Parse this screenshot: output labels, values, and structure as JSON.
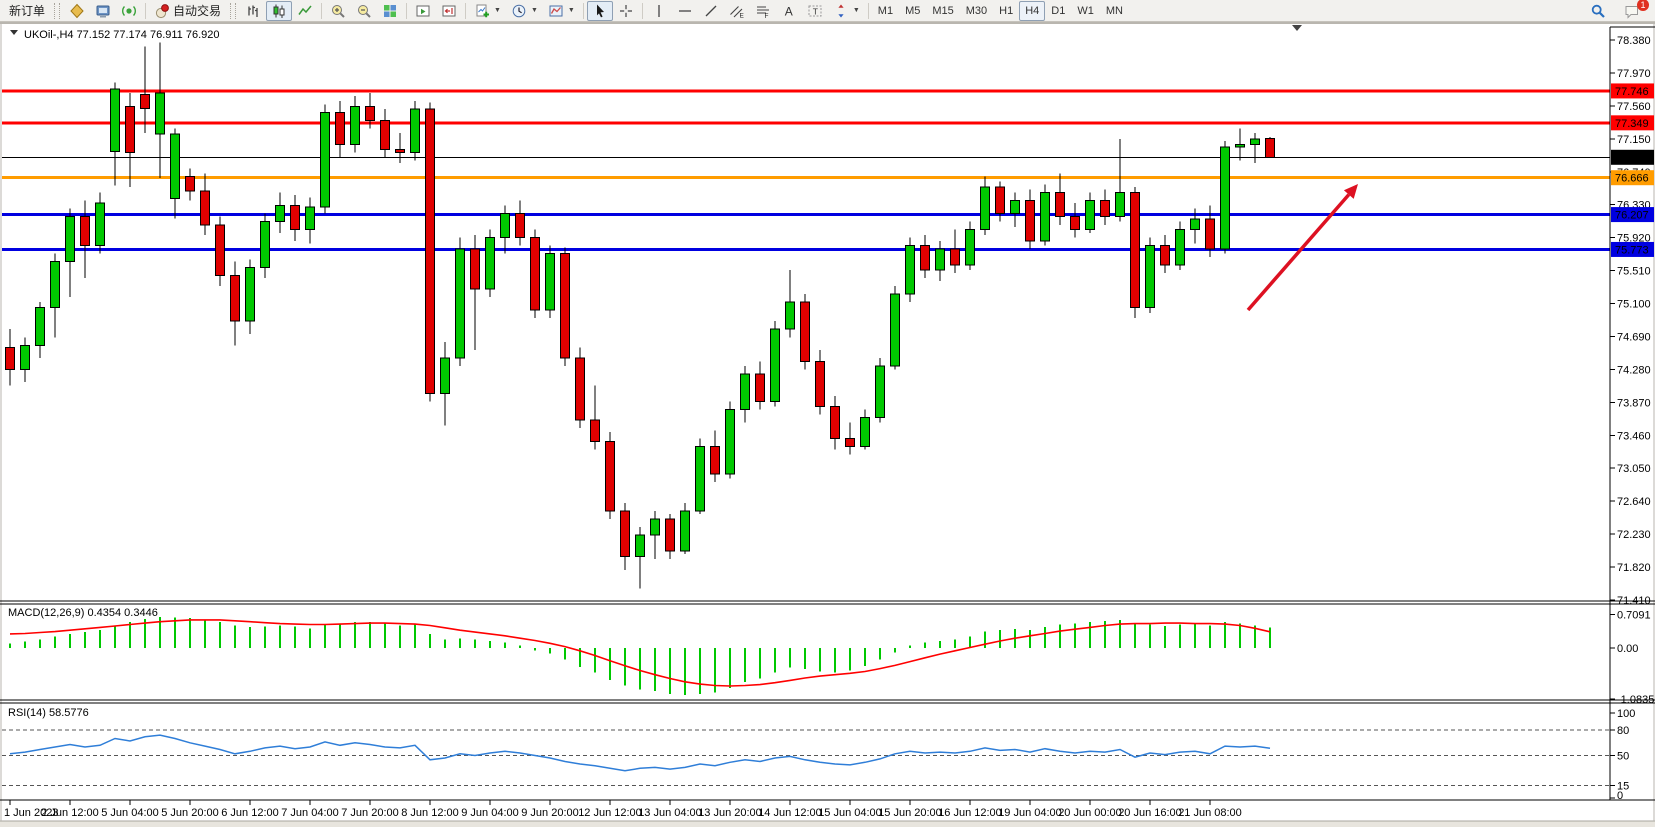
{
  "toolbar": {
    "buttons": {
      "new_order": "新订单",
      "autotrading": "自动交易"
    },
    "icon_groups": [
      [
        "market-watch-icon",
        "terminal-icon",
        "signals-icon"
      ],
      [
        "bar-chart-icon",
        "candlestick-chart-icon",
        "line-chart-icon"
      ],
      [
        "zoom-in-icon",
        "zoom-out-icon",
        "tile-windows-icon"
      ],
      [
        "auto-scroll-icon",
        "chart-shift-icon"
      ],
      [
        "add-indicator-icon",
        "periods-icon",
        "templates-icon"
      ],
      [
        "cursor-icon",
        "crosshair-icon"
      ],
      [
        "vertical-line-icon",
        "horizontal-line-icon",
        "trendline-icon",
        "equidistant-channel-icon",
        "fibonacci-icon",
        "text-icon",
        "text-label-icon",
        "arrows-icon"
      ]
    ],
    "active_icons": [
      "candlestick-chart-icon",
      "cursor-icon"
    ],
    "caret_icons": [
      "add-indicator-icon",
      "periods-icon",
      "templates-icon",
      "arrows-icon"
    ],
    "timeframes": [
      "M1",
      "M5",
      "M15",
      "M30",
      "H1",
      "H4",
      "D1",
      "W1",
      "MN"
    ],
    "active_timeframe": "H4",
    "right_icons": [
      "search-icon",
      "chat-icon"
    ],
    "chat_badge": "1"
  },
  "chart_data": {
    "type": "candlestick",
    "title": {
      "symbol": "UKOil-,H4",
      "ohlc": "77.152 77.174 76.911 76.920"
    },
    "colors": {
      "up": "#00C800",
      "down": "#E00000",
      "outline": "#000000",
      "macd_hist": "#00C800",
      "macd_signal": "#FF0000",
      "rsi_line": "#2F7ED8",
      "level_red": "#FF0000",
      "level_orange": "#FF9C00",
      "level_blue": "#0000E0",
      "current_price": "#000000",
      "arrow": "#DD1122"
    },
    "price_axis": {
      "labels": [
        "78.380",
        "77.970",
        "77.560",
        "77.150",
        "76.740",
        "76.330",
        "75.920",
        "75.510",
        "75.100",
        "74.690",
        "74.280",
        "73.870",
        "73.460",
        "73.050",
        "72.640",
        "72.230",
        "71.820",
        "71.410"
      ],
      "visible_range": [
        71.41,
        78.38
      ]
    },
    "hlines": [
      {
        "price": 77.746,
        "label": "77.746",
        "color": "#FF0000",
        "width": 3,
        "current": false
      },
      {
        "price": 77.349,
        "label": "77.349",
        "color": "#FF0000",
        "width": 3,
        "current": false
      },
      {
        "price": 76.92,
        "label": "76.920",
        "color": "#000000",
        "width": 1,
        "current": true
      },
      {
        "price": 76.666,
        "label": "76.666",
        "color": "#FF9C00",
        "width": 3,
        "current": false
      },
      {
        "price": 76.207,
        "label": "76.207",
        "color": "#0000E0",
        "width": 3,
        "current": false
      },
      {
        "price": 75.773,
        "label": "75.773",
        "color": "#0000E0",
        "width": 3,
        "current": false
      }
    ],
    "time_labels": [
      "1 Jun 2023",
      "2 Jun 12:00",
      "5 Jun 04:00",
      "5 Jun 20:00",
      "6 Jun 12:00",
      "7 Jun 04:00",
      "7 Jun 20:00",
      "8 Jun 12:00",
      "9 Jun 04:00",
      "9 Jun 20:00",
      "12 Jun 12:00",
      "13 Jun 04:00",
      "13 Jun 20:00",
      "14 Jun 12:00",
      "15 Jun 04:00",
      "15 Jun 20:00",
      "16 Jun 12:00",
      "19 Jun 04:00",
      "20 Jun 00:00",
      "20 Jun 16:00",
      "21 Jun 08:00"
    ],
    "candles": [
      [
        74.55,
        74.78,
        74.08,
        74.28
      ],
      [
        74.28,
        74.68,
        74.12,
        74.58
      ],
      [
        74.58,
        75.12,
        74.42,
        75.05
      ],
      [
        75.05,
        75.72,
        74.68,
        75.62
      ],
      [
        75.62,
        76.28,
        75.18,
        76.18
      ],
      [
        76.18,
        76.38,
        75.42,
        75.82
      ],
      [
        75.82,
        76.48,
        75.72,
        76.35
      ],
      [
        76.99,
        77.85,
        76.57,
        77.77
      ],
      [
        77.55,
        77.72,
        76.55,
        76.98
      ],
      [
        77.7,
        78.3,
        77.22,
        77.53
      ],
      [
        77.21,
        78.35,
        76.66,
        77.72
      ],
      [
        76.41,
        77.28,
        76.16,
        77.21
      ],
      [
        76.68,
        76.78,
        76.38,
        76.5
      ],
      [
        76.5,
        76.72,
        75.95,
        76.08
      ],
      [
        76.08,
        76.18,
        75.32,
        75.45
      ],
      [
        75.45,
        75.62,
        74.58,
        74.88
      ],
      [
        74.88,
        75.65,
        74.72,
        75.55
      ],
      [
        75.55,
        76.22,
        75.42,
        76.12
      ],
      [
        76.12,
        76.48,
        75.98,
        76.32
      ],
      [
        76.32,
        76.45,
        75.88,
        76.02
      ],
      [
        76.02,
        76.42,
        75.85,
        76.3
      ],
      [
        76.3,
        77.58,
        76.22,
        77.48
      ],
      [
        77.48,
        77.62,
        76.92,
        77.08
      ],
      [
        77.08,
        77.68,
        76.98,
        77.55
      ],
      [
        77.55,
        77.72,
        77.28,
        77.38
      ],
      [
        77.38,
        77.52,
        76.92,
        77.02
      ],
      [
        77.02,
        77.22,
        76.85,
        76.98
      ],
      [
        76.98,
        77.62,
        76.88,
        77.52
      ],
      [
        77.52,
        77.6,
        73.88,
        73.98
      ],
      [
        73.98,
        74.62,
        73.58,
        74.42
      ],
      [
        74.42,
        75.92,
        74.32,
        75.78
      ],
      [
        75.78,
        75.95,
        74.52,
        75.28
      ],
      [
        75.28,
        76.02,
        75.18,
        75.92
      ],
      [
        75.92,
        76.32,
        75.72,
        76.22
      ],
      [
        76.22,
        76.38,
        75.82,
        75.92
      ],
      [
        75.92,
        76.02,
        74.92,
        75.02
      ],
      [
        75.02,
        75.82,
        74.92,
        75.72
      ],
      [
        75.72,
        75.8,
        74.32,
        74.42
      ],
      [
        74.42,
        74.55,
        73.55,
        73.65
      ],
      [
        73.65,
        74.08,
        73.28,
        73.38
      ],
      [
        73.38,
        73.5,
        72.42,
        72.52
      ],
      [
        72.52,
        72.62,
        71.78,
        71.95
      ],
      [
        71.95,
        72.32,
        71.55,
        72.22
      ],
      [
        72.22,
        72.52,
        71.92,
        72.42
      ],
      [
        72.42,
        72.48,
        71.92,
        72.02
      ],
      [
        72.02,
        72.62,
        71.98,
        72.52
      ],
      [
        72.52,
        73.42,
        72.48,
        73.32
      ],
      [
        73.32,
        73.52,
        72.88,
        72.98
      ],
      [
        72.98,
        73.88,
        72.92,
        73.78
      ],
      [
        73.78,
        74.32,
        73.62,
        74.22
      ],
      [
        74.22,
        74.38,
        73.78,
        73.88
      ],
      [
        73.88,
        74.88,
        73.82,
        74.78
      ],
      [
        74.78,
        75.52,
        74.68,
        75.12
      ],
      [
        75.12,
        75.22,
        74.28,
        74.38
      ],
      [
        74.38,
        74.52,
        73.72,
        73.82
      ],
      [
        73.82,
        73.95,
        73.28,
        73.42
      ],
      [
        73.42,
        73.62,
        73.22,
        73.32
      ],
      [
        73.32,
        73.78,
        73.28,
        73.68
      ],
      [
        73.68,
        74.42,
        73.62,
        74.32
      ],
      [
        74.32,
        75.32,
        74.28,
        75.22
      ],
      [
        75.22,
        75.92,
        75.12,
        75.82
      ],
      [
        75.82,
        75.95,
        75.42,
        75.52
      ],
      [
        75.52,
        75.88,
        75.38,
        75.78
      ],
      [
        75.78,
        76.02,
        75.48,
        75.58
      ],
      [
        75.58,
        76.12,
        75.52,
        76.02
      ],
      [
        76.02,
        76.68,
        75.95,
        76.55
      ],
      [
        76.55,
        76.62,
        76.12,
        76.22
      ],
      [
        76.22,
        76.48,
        76.05,
        76.38
      ],
      [
        76.38,
        76.52,
        75.78,
        75.88
      ],
      [
        75.88,
        76.58,
        75.82,
        76.48
      ],
      [
        76.48,
        76.72,
        76.08,
        76.18
      ],
      [
        76.18,
        76.35,
        75.92,
        76.02
      ],
      [
        76.02,
        76.48,
        75.98,
        76.38
      ],
      [
        76.38,
        76.52,
        76.08,
        76.18
      ],
      [
        76.18,
        77.15,
        76.12,
        76.48
      ],
      [
        76.48,
        76.55,
        74.92,
        75.05
      ],
      [
        75.05,
        75.92,
        74.98,
        75.82
      ],
      [
        75.82,
        75.95,
        75.48,
        75.58
      ],
      [
        75.58,
        76.12,
        75.52,
        76.02
      ],
      [
        76.02,
        76.28,
        75.85,
        76.15
      ],
      [
        76.15,
        76.32,
        75.68,
        75.78
      ],
      [
        75.78,
        77.12,
        75.72,
        77.05
      ],
      [
        77.05,
        77.28,
        76.88,
        77.08
      ],
      [
        77.08,
        77.22,
        76.85,
        77.15
      ],
      [
        77.152,
        77.174,
        76.911,
        76.92
      ]
    ],
    "macd": {
      "label": "MACD(12,26,9) 0.4354 0.3446",
      "axis_labels": [
        "0.7091",
        "0.00",
        "-1.0835"
      ],
      "range": [
        -1.0835,
        0.7091
      ],
      "hist": [
        0.1,
        0.14,
        0.18,
        0.24,
        0.3,
        0.34,
        0.38,
        0.48,
        0.55,
        0.62,
        0.66,
        0.65,
        0.64,
        0.6,
        0.55,
        0.48,
        0.45,
        0.46,
        0.48,
        0.46,
        0.42,
        0.5,
        0.52,
        0.55,
        0.55,
        0.52,
        0.48,
        0.5,
        0.3,
        0.18,
        0.2,
        0.18,
        0.15,
        0.12,
        0.05,
        -0.05,
        -0.12,
        -0.25,
        -0.4,
        -0.52,
        -0.68,
        -0.8,
        -0.88,
        -0.92,
        -0.98,
        -1.0,
        -0.98,
        -0.95,
        -0.85,
        -0.72,
        -0.65,
        -0.52,
        -0.42,
        -0.45,
        -0.5,
        -0.52,
        -0.48,
        -0.38,
        -0.25,
        -0.1,
        0.05,
        0.12,
        0.15,
        0.18,
        0.25,
        0.35,
        0.38,
        0.4,
        0.38,
        0.45,
        0.5,
        0.52,
        0.55,
        0.58,
        0.6,
        0.52,
        0.5,
        0.47,
        0.5,
        0.52,
        0.48,
        0.55,
        0.52,
        0.48,
        0.4354
      ],
      "signal": [
        0.3,
        0.31,
        0.33,
        0.35,
        0.38,
        0.41,
        0.44,
        0.47,
        0.5,
        0.53,
        0.56,
        0.58,
        0.6,
        0.6,
        0.6,
        0.58,
        0.56,
        0.54,
        0.52,
        0.51,
        0.5,
        0.5,
        0.51,
        0.52,
        0.53,
        0.53,
        0.52,
        0.51,
        0.48,
        0.43,
        0.38,
        0.34,
        0.3,
        0.26,
        0.21,
        0.16,
        0.1,
        0.03,
        -0.06,
        -0.16,
        -0.27,
        -0.38,
        -0.48,
        -0.57,
        -0.65,
        -0.72,
        -0.77,
        -0.8,
        -0.81,
        -0.8,
        -0.78,
        -0.74,
        -0.69,
        -0.64,
        -0.6,
        -0.57,
        -0.54,
        -0.5,
        -0.44,
        -0.37,
        -0.29,
        -0.21,
        -0.13,
        -0.06,
        0.01,
        0.08,
        0.15,
        0.21,
        0.26,
        0.31,
        0.36,
        0.4,
        0.44,
        0.48,
        0.51,
        0.52,
        0.52,
        0.53,
        0.53,
        0.52,
        0.52,
        0.51,
        0.48,
        0.42,
        0.3446
      ]
    },
    "rsi": {
      "label": "RSI(14) 58.5776",
      "axis_labels": [
        "100",
        "80",
        "50",
        "15",
        "0"
      ],
      "axis_values": [
        100,
        80,
        50,
        15,
        0
      ],
      "levels": [
        80,
        50,
        15
      ],
      "values": [
        52,
        54,
        57,
        60,
        63,
        60,
        62,
        70,
        67,
        72,
        74,
        70,
        65,
        61,
        57,
        52,
        55,
        59,
        61,
        58,
        60,
        66,
        62,
        65,
        63,
        60,
        59,
        62,
        45,
        47,
        52,
        50,
        53,
        55,
        53,
        50,
        47,
        43,
        40,
        38,
        35,
        32,
        35,
        36,
        34,
        36,
        40,
        38,
        42,
        45,
        43,
        47,
        49,
        45,
        42,
        40,
        39,
        42,
        46,
        52,
        55,
        53,
        54,
        53,
        55,
        59,
        56,
        57,
        54,
        58,
        55,
        53,
        55,
        54,
        57,
        48,
        53,
        51,
        54,
        55,
        52,
        61,
        60,
        61,
        58.58
      ]
    },
    "annotation_arrow": {
      "from": [
        1248,
        310
      ],
      "to": [
        1358,
        184
      ]
    }
  }
}
